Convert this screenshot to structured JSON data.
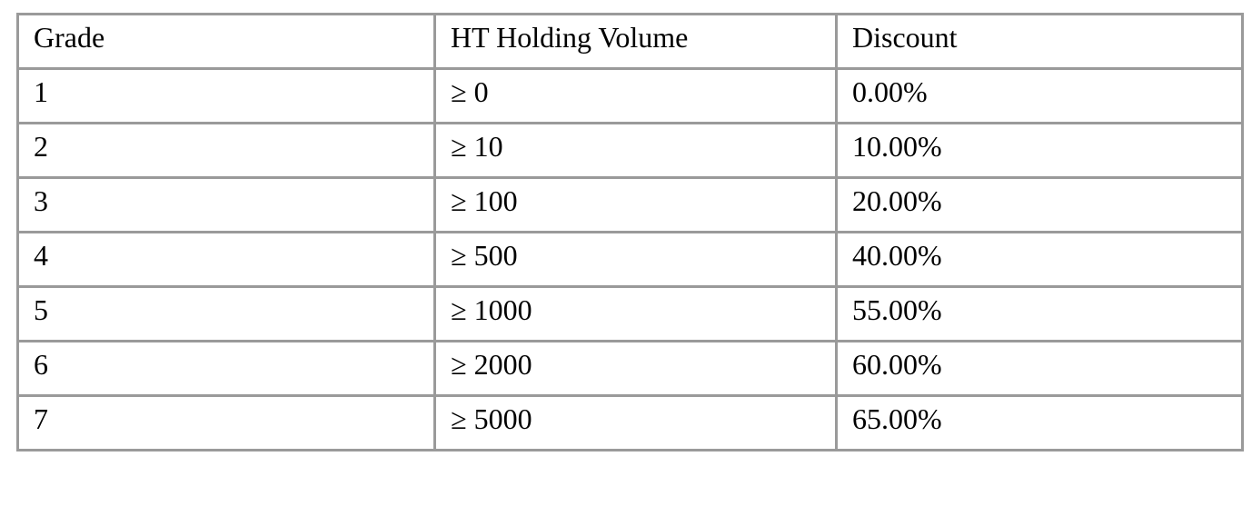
{
  "table": {
    "headers": [
      "Grade",
      "HT Holding Volume",
      "Discount"
    ],
    "rows": [
      [
        "1",
        "≥ 0",
        "0.00%"
      ],
      [
        "2",
        "≥ 10",
        "10.00%"
      ],
      [
        "3",
        "≥ 100",
        "20.00%"
      ],
      [
        "4",
        "≥ 500",
        "40.00%"
      ],
      [
        "5",
        "≥ 1000",
        "55.00%"
      ],
      [
        "6",
        "≥ 2000",
        "60.00%"
      ],
      [
        "7",
        "≥ 5000",
        "65.00%"
      ]
    ]
  },
  "colors": {
    "border": "#9a9a9a",
    "text": "#000000",
    "background": "#ffffff"
  }
}
